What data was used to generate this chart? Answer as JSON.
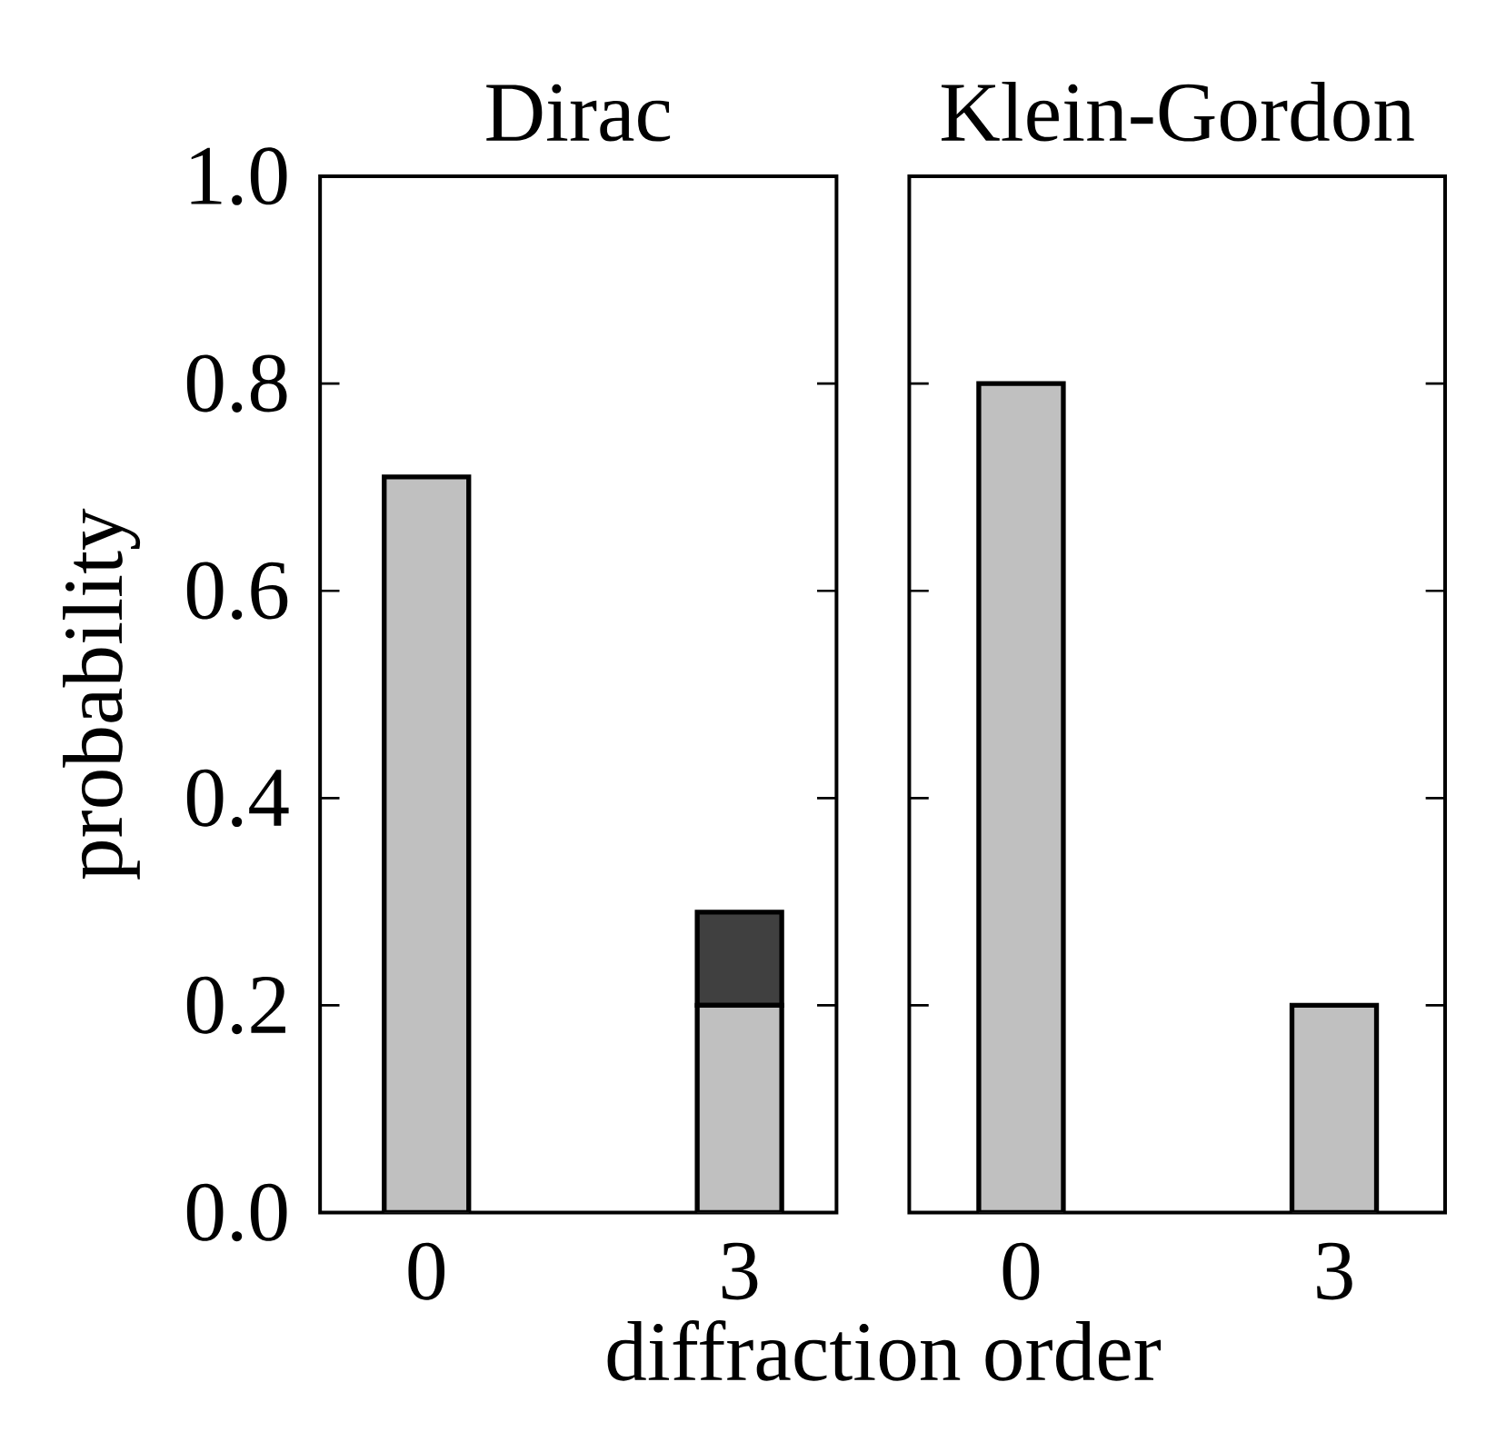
{
  "chart_data": [
    {
      "type": "bar",
      "title": "Dirac",
      "xlabel": "diffraction order",
      "ylabel": "probability",
      "categories": [
        "0",
        "3"
      ],
      "stacked": true,
      "series": [
        {
          "color": "#c0c0c0",
          "values": [
            0.71,
            0.2
          ]
        },
        {
          "color": "#404040",
          "values": [
            null,
            0.09
          ]
        }
      ],
      "ylim": [
        0,
        1
      ],
      "yticks": [
        {
          "value": 0,
          "label": "0.0"
        },
        {
          "value": 0.2,
          "label": "0.2"
        },
        {
          "value": 0.4,
          "label": "0.4"
        },
        {
          "value": 0.6,
          "label": "0.6"
        },
        {
          "value": 0.8,
          "label": "0.8"
        },
        {
          "value": 1,
          "label": "1.0"
        }
      ]
    },
    {
      "type": "bar",
      "title": "Klein-Gordon",
      "categories": [
        "0",
        "3"
      ],
      "stacked": true,
      "tick_labels": "x",
      "series": [
        {
          "color": "#c0c0c0",
          "values": [
            0.8,
            0.2
          ]
        }
      ],
      "ylim": [
        0,
        1
      ],
      "yticks": [
        {
          "value": 0,
          "label": null
        },
        {
          "value": 0.2,
          "label": null
        },
        {
          "value": 0.4,
          "label": null
        },
        {
          "value": 0.6,
          "label": null
        },
        {
          "value": 0.8,
          "label": null
        },
        {
          "value": 1,
          "label": null
        }
      ]
    }
  ]
}
